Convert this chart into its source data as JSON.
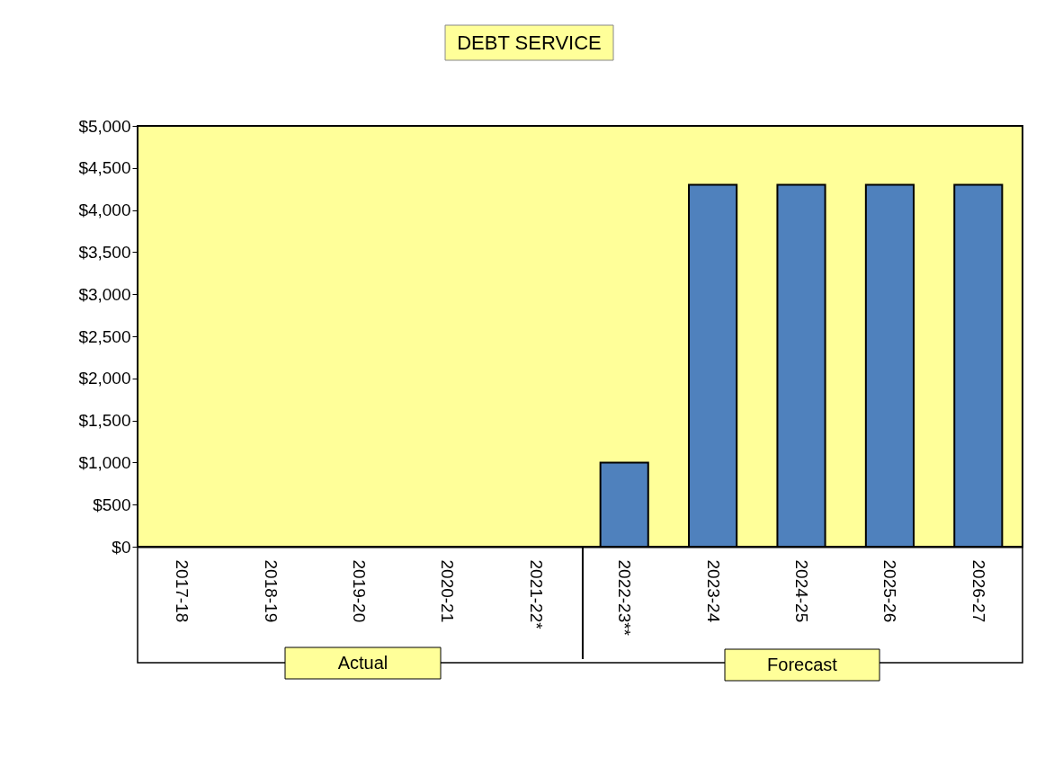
{
  "chart_data": {
    "type": "bar",
    "title": "DEBT SERVICE",
    "categories": [
      "2017-18",
      "2018-19",
      "2019-20",
      "2020-21",
      "2021-22*",
      "2022-23**",
      "2023-24",
      "2024-25",
      "2025-26",
      "2026-27"
    ],
    "values": [
      0,
      0,
      0,
      0,
      0,
      1000,
      4300,
      4300,
      4300,
      4300
    ],
    "color": "#4f81bd",
    "ylim": [
      0,
      5000
    ],
    "yticks": [
      {
        "value": 0,
        "label": "$0"
      },
      {
        "value": 500,
        "label": "$500"
      },
      {
        "value": 1000,
        "label": "$1,000"
      },
      {
        "value": 1500,
        "label": "$1,500"
      },
      {
        "value": 2000,
        "label": "$2,000"
      },
      {
        "value": 2500,
        "label": "$2,500"
      },
      {
        "value": 3000,
        "label": "$3,000"
      },
      {
        "value": 3500,
        "label": "$3,500"
      },
      {
        "value": 4000,
        "label": "$4,000"
      },
      {
        "value": 4500,
        "label": "$4,500"
      },
      {
        "value": 5000,
        "label": "$5,000"
      }
    ],
    "annotations": [
      "Actual",
      "Forecast"
    ]
  }
}
